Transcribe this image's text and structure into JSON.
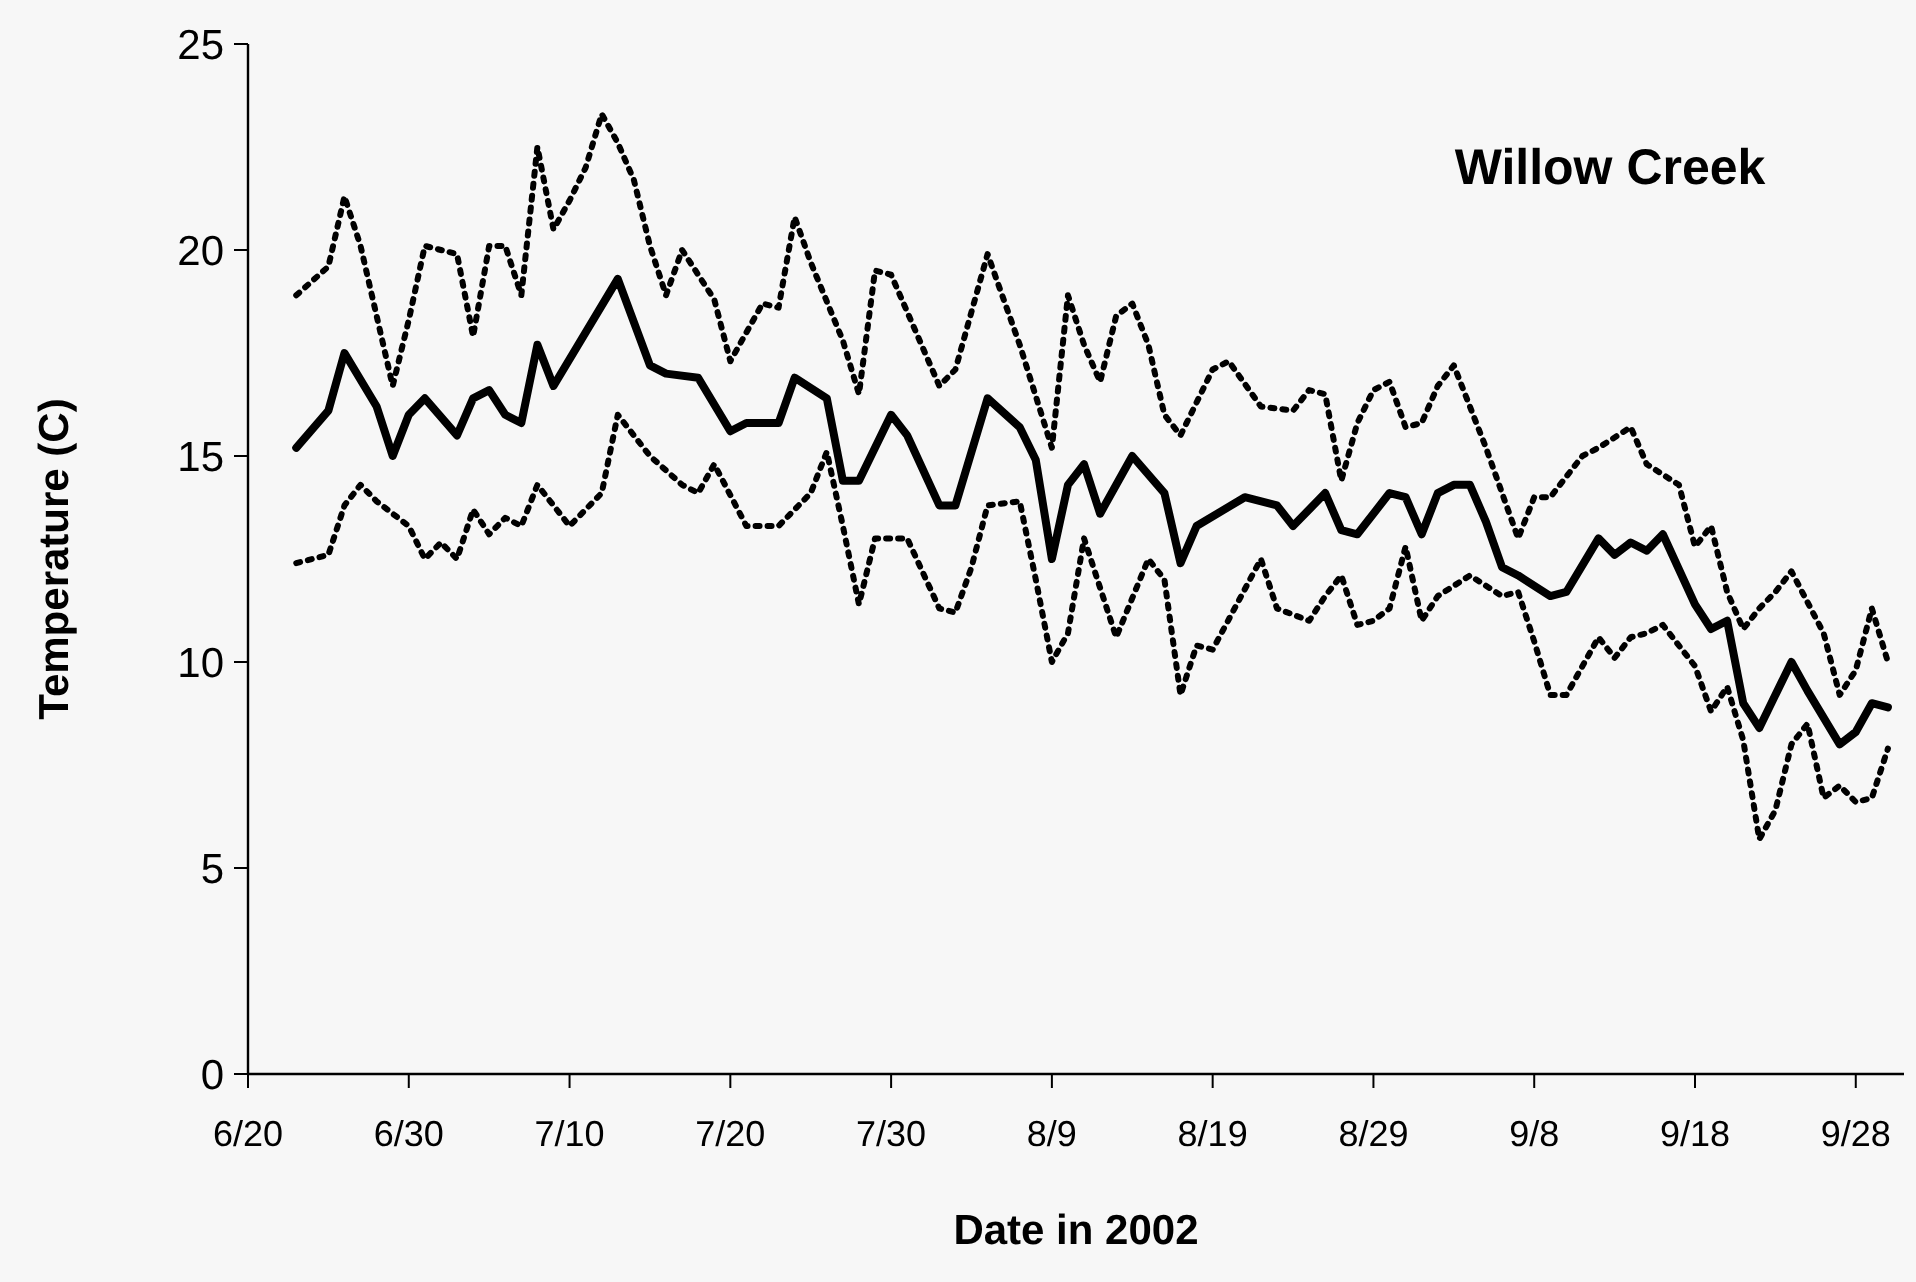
{
  "chart_data": {
    "type": "line",
    "title": "Willow Creek",
    "xlabel": "Date in 2002",
    "ylabel": "Temperature (C)",
    "xlim": [
      "2002-06-20",
      "2002-10-01"
    ],
    "xticks": [
      {
        "value": "2002-06-20",
        "label": "6/20"
      },
      {
        "value": "2002-06-30",
        "label": "6/30"
      },
      {
        "value": "2002-07-10",
        "label": "7/10"
      },
      {
        "value": "2002-07-20",
        "label": "7/20"
      },
      {
        "value": "2002-07-30",
        "label": "7/30"
      },
      {
        "value": "2002-08-09",
        "label": "8/9"
      },
      {
        "value": "2002-08-19",
        "label": "8/19"
      },
      {
        "value": "2002-08-29",
        "label": "8/29"
      },
      {
        "value": "2002-09-08",
        "label": "9/8"
      },
      {
        "value": "2002-09-18",
        "label": "9/18"
      },
      {
        "value": "2002-09-28",
        "label": "9/28"
      }
    ],
    "ylim": [
      0,
      25
    ],
    "yticks": [
      0,
      5,
      10,
      15,
      20,
      25
    ],
    "grid": false,
    "marker": "none",
    "series": [
      {
        "color": "#000000",
        "line_style": "dotted",
        "x": [
          "2002-06-23",
          "2002-06-25",
          "2002-06-26",
          "2002-06-27",
          "2002-06-28",
          "2002-06-29",
          "2002-06-30",
          "2002-07-01",
          "2002-07-03",
          "2002-07-04",
          "2002-07-05",
          "2002-07-06",
          "2002-07-07",
          "2002-07-08",
          "2002-07-09",
          "2002-07-10",
          "2002-07-11",
          "2002-07-12",
          "2002-07-13",
          "2002-07-14",
          "2002-07-15",
          "2002-07-16",
          "2002-07-17",
          "2002-07-19",
          "2002-07-20",
          "2002-07-22",
          "2002-07-23",
          "2002-07-24",
          "2002-07-25",
          "2002-07-27",
          "2002-07-28",
          "2002-07-29",
          "2002-07-30",
          "2002-08-02",
          "2002-08-03",
          "2002-08-04",
          "2002-08-05",
          "2002-08-07",
          "2002-08-09",
          "2002-08-10",
          "2002-08-11",
          "2002-08-12",
          "2002-08-13",
          "2002-08-14",
          "2002-08-15",
          "2002-08-16",
          "2002-08-17",
          "2002-08-19",
          "2002-08-20",
          "2002-08-22",
          "2002-08-24",
          "2002-08-25",
          "2002-08-26",
          "2002-08-27",
          "2002-08-28",
          "2002-08-29",
          "2002-08-30",
          "2002-08-31",
          "2002-09-01",
          "2002-09-02",
          "2002-09-03",
          "2002-09-05",
          "2002-09-07",
          "2002-09-08",
          "2002-09-09",
          "2002-09-11",
          "2002-09-12",
          "2002-09-14",
          "2002-09-15",
          "2002-09-17",
          "2002-09-18",
          "2002-09-19",
          "2002-09-20",
          "2002-09-21",
          "2002-09-22",
          "2002-09-23",
          "2002-09-24",
          "2002-09-26",
          "2002-09-27",
          "2002-09-28",
          "2002-09-29",
          "2002-09-30"
        ],
        "values": [
          18.9,
          19.6,
          21.3,
          20.1,
          18.4,
          16.7,
          18.3,
          20.1,
          19.9,
          17.9,
          20.1,
          20.1,
          18.9,
          22.5,
          20.5,
          21.2,
          22.0,
          23.3,
          22.6,
          21.7,
          20.1,
          18.9,
          20.0,
          18.8,
          17.3,
          18.7,
          18.6,
          20.8,
          19.7,
          17.8,
          16.5,
          19.5,
          19.4,
          16.7,
          17.1,
          18.5,
          19.9,
          17.7,
          15.2,
          18.9,
          17.7,
          16.8,
          18.4,
          18.7,
          17.7,
          16.0,
          15.5,
          17.1,
          17.3,
          16.2,
          16.1,
          16.6,
          16.5,
          14.4,
          15.8,
          16.6,
          16.8,
          15.7,
          15.8,
          16.7,
          17.2,
          15.2,
          13.0,
          14.0,
          14.0,
          15.0,
          15.2,
          15.7,
          14.8,
          14.3,
          12.8,
          13.3,
          11.7,
          10.8,
          11.3,
          11.7,
          12.2,
          10.7,
          9.2,
          9.8,
          11.3,
          10.0
        ]
      },
      {
        "color": "#000000",
        "line_style": "solid",
        "x": [
          "2002-06-23",
          "2002-06-25",
          "2002-06-26",
          "2002-06-28",
          "2002-06-29",
          "2002-06-30",
          "2002-07-01",
          "2002-07-03",
          "2002-07-04",
          "2002-07-05",
          "2002-07-06",
          "2002-07-07",
          "2002-07-08",
          "2002-07-09",
          "2002-07-13",
          "2002-07-15",
          "2002-07-16",
          "2002-07-18",
          "2002-07-20",
          "2002-07-21",
          "2002-07-23",
          "2002-07-24",
          "2002-07-26",
          "2002-07-27",
          "2002-07-28",
          "2002-07-30",
          "2002-07-31",
          "2002-08-02",
          "2002-08-03",
          "2002-08-05",
          "2002-08-07",
          "2002-08-08",
          "2002-08-09",
          "2002-08-10",
          "2002-08-11",
          "2002-08-12",
          "2002-08-14",
          "2002-08-16",
          "2002-08-17",
          "2002-08-18",
          "2002-08-21",
          "2002-08-23",
          "2002-08-24",
          "2002-08-26",
          "2002-08-27",
          "2002-08-28",
          "2002-08-30",
          "2002-08-31",
          "2002-09-01",
          "2002-09-02",
          "2002-09-03",
          "2002-09-04",
          "2002-09-05",
          "2002-09-06",
          "2002-09-07",
          "2002-09-09",
          "2002-09-10",
          "2002-09-12",
          "2002-09-13",
          "2002-09-14",
          "2002-09-15",
          "2002-09-16",
          "2002-09-18",
          "2002-09-19",
          "2002-09-20",
          "2002-09-21",
          "2002-09-22",
          "2002-09-24",
          "2002-09-25",
          "2002-09-27",
          "2002-09-28",
          "2002-09-29",
          "2002-09-30"
        ],
        "values": [
          15.2,
          16.1,
          17.5,
          16.2,
          15.0,
          16.0,
          16.4,
          15.5,
          16.4,
          16.6,
          16.0,
          15.8,
          17.7,
          16.7,
          19.3,
          17.2,
          17.0,
          16.9,
          15.6,
          15.8,
          15.8,
          16.9,
          16.4,
          14.4,
          14.4,
          16.0,
          15.5,
          13.8,
          13.8,
          16.4,
          15.7,
          14.9,
          12.5,
          14.3,
          14.8,
          13.6,
          15.0,
          14.1,
          12.4,
          13.3,
          14.0,
          13.8,
          13.3,
          14.1,
          13.2,
          13.1,
          14.1,
          14.0,
          13.1,
          14.1,
          14.3,
          14.3,
          13.4,
          12.3,
          12.1,
          11.6,
          11.7,
          13.0,
          12.6,
          12.9,
          12.7,
          13.1,
          11.4,
          10.8,
          11.0,
          9.0,
          8.4,
          10.0,
          9.3,
          8.0,
          8.3,
          9.0,
          8.9
        ]
      },
      {
        "color": "#000000",
        "line_style": "dotted",
        "x": [
          "2002-06-23",
          "2002-06-25",
          "2002-06-26",
          "2002-06-27",
          "2002-06-28",
          "2002-06-30",
          "2002-07-01",
          "2002-07-02",
          "2002-07-03",
          "2002-07-04",
          "2002-07-05",
          "2002-07-06",
          "2002-07-07",
          "2002-07-08",
          "2002-07-10",
          "2002-07-12",
          "2002-07-13",
          "2002-07-15",
          "2002-07-17",
          "2002-07-18",
          "2002-07-19",
          "2002-07-21",
          "2002-07-23",
          "2002-07-25",
          "2002-07-26",
          "2002-07-27",
          "2002-07-28",
          "2002-07-29",
          "2002-07-31",
          "2002-08-02",
          "2002-08-03",
          "2002-08-04",
          "2002-08-05",
          "2002-08-07",
          "2002-08-08",
          "2002-08-09",
          "2002-08-10",
          "2002-08-11",
          "2002-08-12",
          "2002-08-13",
          "2002-08-15",
          "2002-08-16",
          "2002-08-17",
          "2002-08-18",
          "2002-08-19",
          "2002-08-22",
          "2002-08-23",
          "2002-08-25",
          "2002-08-26",
          "2002-08-27",
          "2002-08-28",
          "2002-08-29",
          "2002-08-30",
          "2002-08-31",
          "2002-09-01",
          "2002-09-02",
          "2002-09-04",
          "2002-09-06",
          "2002-09-07",
          "2002-09-08",
          "2002-09-09",
          "2002-09-10",
          "2002-09-11",
          "2002-09-12",
          "2002-09-13",
          "2002-09-14",
          "2002-09-15",
          "2002-09-16",
          "2002-09-18",
          "2002-09-19",
          "2002-09-20",
          "2002-09-21",
          "2002-09-22",
          "2002-09-23",
          "2002-09-24",
          "2002-09-25",
          "2002-09-26",
          "2002-09-27",
          "2002-09-28",
          "2002-09-29",
          "2002-09-30"
        ],
        "values": [
          12.4,
          12.6,
          13.8,
          14.3,
          13.9,
          13.3,
          12.5,
          12.9,
          12.5,
          13.7,
          13.1,
          13.5,
          13.3,
          14.3,
          13.3,
          14.1,
          16.0,
          15.0,
          14.3,
          14.1,
          14.8,
          13.3,
          13.3,
          14.1,
          15.1,
          13.3,
          11.4,
          13.0,
          13.0,
          11.3,
          11.2,
          12.3,
          13.8,
          13.9,
          12.0,
          10.0,
          10.7,
          13.0,
          11.8,
          10.6,
          12.5,
          12.0,
          9.2,
          10.4,
          10.3,
          12.5,
          11.3,
          11.0,
          11.6,
          12.1,
          10.9,
          11.0,
          11.3,
          12.8,
          11.0,
          11.6,
          12.1,
          11.6,
          11.7,
          10.5,
          9.2,
          9.2,
          9.9,
          10.6,
          10.1,
          10.6,
          10.7,
          10.9,
          9.9,
          8.8,
          9.4,
          8.1,
          5.7,
          6.4,
          8.0,
          8.5,
          6.7,
          7.0,
          6.6,
          6.7,
          7.9
        ]
      }
    ]
  }
}
